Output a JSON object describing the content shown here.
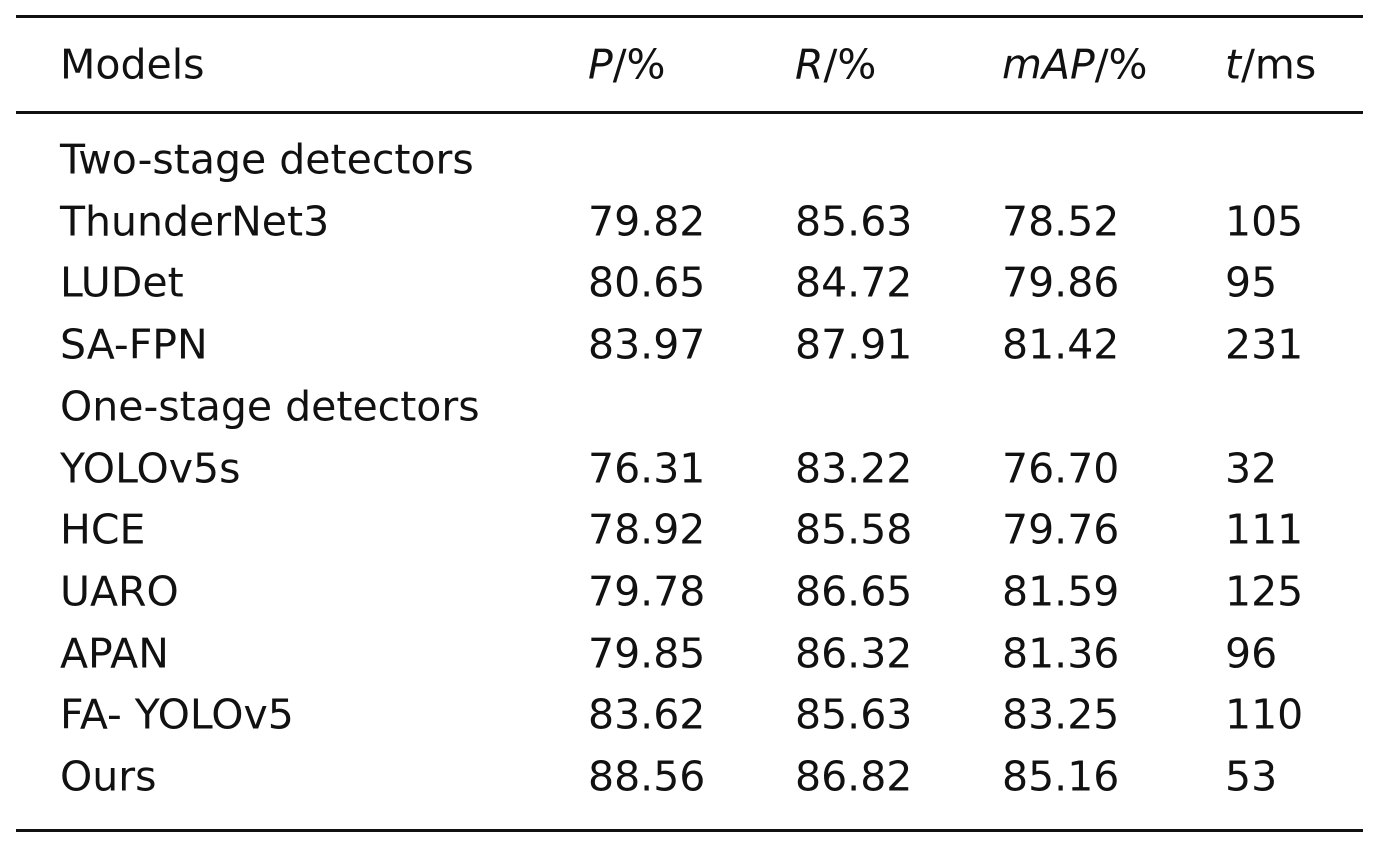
{
  "table": {
    "header": [
      "Models",
      [
        "P",
        "/%"
      ],
      [
        "R",
        "/%"
      ],
      [
        "mAP",
        "/%"
      ],
      [
        "t",
        "/ms"
      ]
    ],
    "sections": [
      {
        "label": "Two-stage detectors",
        "rows": [
          [
            "ThunderNet3",
            "79.82",
            "85.63",
            "78.52",
            "105"
          ],
          [
            "LUDet",
            "80.65",
            "84.72",
            "79.86",
            "95"
          ],
          [
            "SA-FPN",
            "83.97",
            "87.91",
            "81.42",
            "231"
          ]
        ]
      },
      {
        "label": "One-stage detectors",
        "rows": [
          [
            "YOLOv5s",
            "76.31",
            "83.22",
            "76.70",
            "32"
          ],
          [
            "HCE",
            "78.92",
            "85.58",
            "79.76",
            "111"
          ],
          [
            "UARO",
            "79.78",
            "86.65",
            "81.59",
            "125"
          ],
          [
            "APAN",
            "79.85",
            "86.32",
            "81.36",
            "96"
          ],
          [
            "FA- YOLOv5",
            "83.62",
            "85.63",
            "83.25",
            "110"
          ],
          [
            "Ours",
            "88.56",
            "86.82",
            "85.16",
            "53"
          ]
        ]
      }
    ]
  }
}
